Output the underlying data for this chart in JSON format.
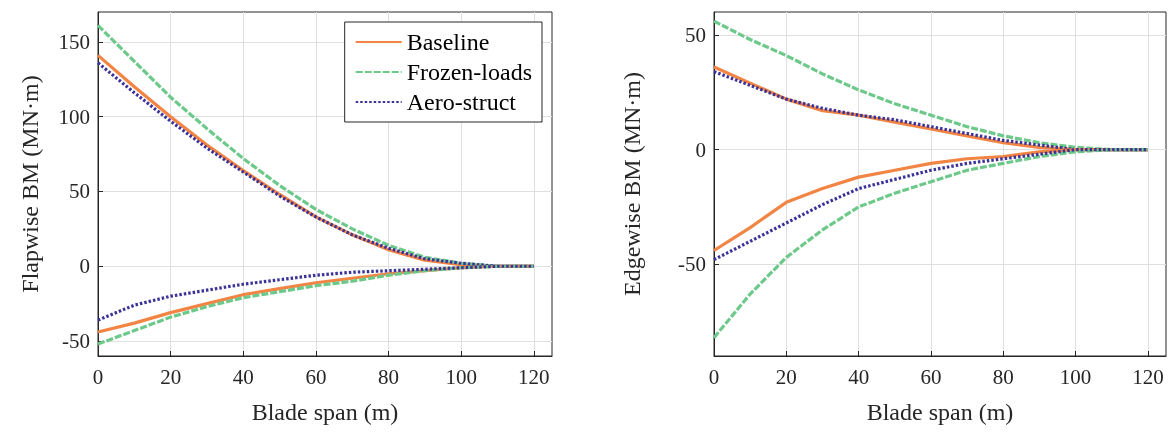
{
  "chart_data": [
    {
      "type": "line",
      "xlabel": "Blade span (m)",
      "ylabel": "Flapwise BM (MN·m)",
      "x": [
        0,
        10,
        20,
        30,
        40,
        50,
        60,
        70,
        80,
        90,
        100,
        110,
        120
      ],
      "xlim": [
        0,
        125
      ],
      "xticks": [
        0,
        20,
        40,
        60,
        80,
        100,
        120
      ],
      "ylim": [
        -60,
        170
      ],
      "yticks": [
        -50,
        0,
        50,
        100,
        150
      ],
      "grid": true,
      "legend": "top right",
      "marker": "none",
      "series": [
        {
          "name": "Baseline",
          "color": "#f28444",
          "line_style": "solid",
          "values": [
            141,
            120,
            100,
            81,
            64,
            48,
            33,
            21,
            11,
            4,
            1,
            0,
            0
          ]
        },
        {
          "name": "Frozen-loads",
          "color": "#6cc98a",
          "line_style": "dashed",
          "values": [
            161,
            137,
            113,
            92,
            72,
            54,
            38,
            25,
            14,
            6,
            2,
            0,
            0
          ]
        },
        {
          "name": "Aero-struct",
          "color": "#3c3399",
          "line_style": "dotted",
          "values": [
            136,
            116,
            97,
            79,
            63,
            47,
            33,
            21,
            12,
            5,
            2,
            0,
            0
          ]
        },
        {
          "color": "#f28444",
          "line_style": "solid",
          "values": [
            -44,
            -38,
            -31,
            -25,
            -19,
            -15,
            -11,
            -8,
            -5,
            -3,
            -1,
            0,
            0
          ]
        },
        {
          "color": "#6cc98a",
          "line_style": "dashed",
          "values": [
            -52,
            -43,
            -34,
            -27,
            -21,
            -17,
            -13,
            -10,
            -6,
            -3,
            -1,
            0,
            0
          ]
        },
        {
          "color": "#3c3399",
          "line_style": "dotted",
          "values": [
            -36,
            -26,
            -20,
            -16,
            -12,
            -9,
            -6,
            -4,
            -3,
            -2,
            -1,
            0,
            0
          ]
        }
      ]
    },
    {
      "type": "line",
      "xlabel": "Blade span (m)",
      "ylabel": "Edgewise BM (MN·m)",
      "x": [
        0,
        10,
        20,
        30,
        40,
        50,
        60,
        70,
        80,
        90,
        100,
        110,
        120
      ],
      "xlim": [
        0,
        125
      ],
      "xticks": [
        0,
        20,
        40,
        60,
        80,
        100,
        120
      ],
      "ylim": [
        -90,
        60
      ],
      "yticks": [
        -50,
        0,
        50
      ],
      "grid": true,
      "marker": "none",
      "series": [
        {
          "color": "#f28444",
          "line_style": "solid",
          "values": [
            36,
            29,
            22,
            17,
            15,
            12,
            9,
            6,
            3,
            1,
            0,
            0,
            0
          ]
        },
        {
          "color": "#6cc98a",
          "line_style": "dashed",
          "values": [
            56,
            48,
            41,
            33,
            26,
            20,
            15,
            10,
            6,
            3,
            1,
            0,
            0
          ]
        },
        {
          "color": "#3c3399",
          "line_style": "dotted",
          "values": [
            34,
            28,
            22,
            18,
            15,
            13,
            10,
            7,
            4,
            2,
            0,
            0,
            0
          ]
        },
        {
          "color": "#f28444",
          "line_style": "solid",
          "values": [
            -44,
            -34,
            -23,
            -17,
            -12,
            -9,
            -6,
            -4,
            -3,
            -1,
            0,
            0,
            0
          ]
        },
        {
          "color": "#6cc98a",
          "line_style": "dashed",
          "values": [
            -82,
            -63,
            -47,
            -35,
            -25,
            -19,
            -14,
            -9,
            -6,
            -3,
            -1,
            0,
            0
          ]
        },
        {
          "color": "#3c3399",
          "line_style": "dotted",
          "values": [
            -48,
            -40,
            -32,
            -24,
            -17,
            -13,
            -9,
            -6,
            -4,
            -2,
            0,
            0,
            0
          ]
        }
      ]
    }
  ]
}
